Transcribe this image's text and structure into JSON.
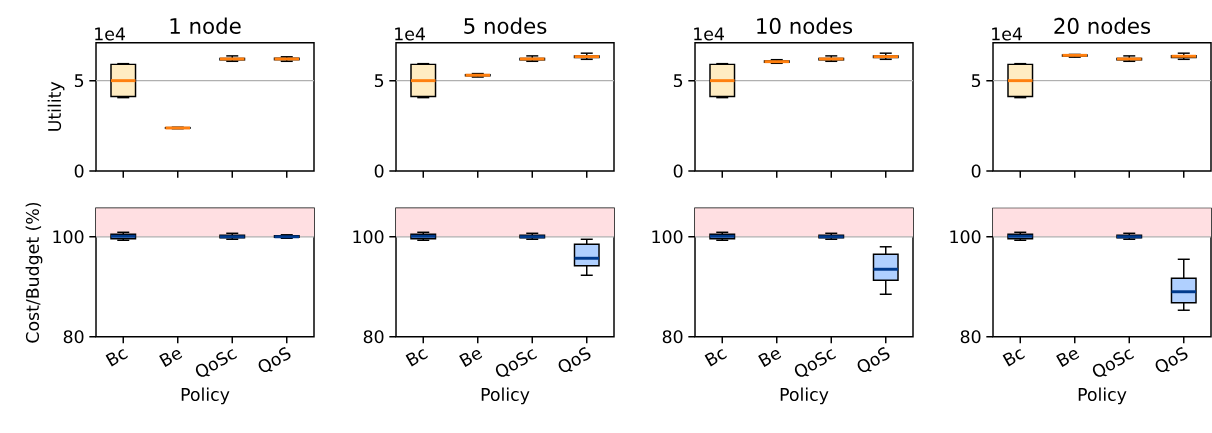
{
  "chart_data": [
    {
      "type": "box",
      "title": "1 node",
      "ylabel": "Utility",
      "categories": [
        null,
        null,
        null,
        null
      ],
      "tick_labels": "y",
      "ylim": [
        0,
        7.1
      ],
      "yticks": [
        0,
        5
      ],
      "annotations": [
        "1e4"
      ],
      "ref_lines": [
        {
          "axis": "y",
          "value": 5,
          "color": "#b0b0b0"
        }
      ],
      "series": [
        {
          "color": "#ffecc2",
          "boxes": [
            {
              "low": 4.06,
              "q1": 4.12,
              "median": 5.0,
              "q3": 5.9,
              "high": 5.94
            },
            {
              "low": 2.34,
              "q1": 2.37,
              "median": 2.38,
              "q3": 2.4,
              "high": 2.42
            },
            {
              "low": 6.07,
              "q1": 6.15,
              "median": 6.2,
              "q3": 6.23,
              "high": 6.37
            },
            {
              "low": 6.07,
              "q1": 6.16,
              "median": 6.2,
              "q3": 6.24,
              "high": 6.32
            }
          ]
        }
      ]
    },
    {
      "type": "box",
      "title": "5 nodes",
      "categories": [
        null,
        null,
        null,
        null
      ],
      "tick_labels": "y",
      "ylim": [
        0,
        7.1
      ],
      "yticks": [
        0,
        5
      ],
      "annotations": [
        "1e4"
      ],
      "ref_lines": [
        {
          "axis": "y",
          "value": 5,
          "color": "#b0b0b0"
        }
      ],
      "series": [
        {
          "color": "#ffecc2",
          "boxes": [
            {
              "low": 4.06,
              "q1": 4.12,
              "median": 5.0,
              "q3": 5.9,
              "high": 5.94
            },
            {
              "low": 5.2,
              "q1": 5.27,
              "median": 5.3,
              "q3": 5.33,
              "high": 5.39
            },
            {
              "low": 6.07,
              "q1": 6.15,
              "median": 6.2,
              "q3": 6.23,
              "high": 6.37
            },
            {
              "low": 6.18,
              "q1": 6.28,
              "median": 6.33,
              "q3": 6.37,
              "high": 6.52
            }
          ]
        }
      ]
    },
    {
      "type": "box",
      "title": "10 nodes",
      "categories": [
        null,
        null,
        null,
        null
      ],
      "tick_labels": "y",
      "ylim": [
        0,
        7.1
      ],
      "yticks": [
        0,
        5
      ],
      "annotations": [
        "1e4"
      ],
      "ref_lines": [
        {
          "axis": "y",
          "value": 5,
          "color": "#b0b0b0"
        }
      ],
      "series": [
        {
          "color": "#ffecc2",
          "boxes": [
            {
              "low": 4.06,
              "q1": 4.12,
              "median": 5.0,
              "q3": 5.9,
              "high": 5.94
            },
            {
              "low": 5.96,
              "q1": 6.02,
              "median": 6.05,
              "q3": 6.09,
              "high": 6.16
            },
            {
              "low": 6.07,
              "q1": 6.15,
              "median": 6.2,
              "q3": 6.23,
              "high": 6.37
            },
            {
              "low": 6.18,
              "q1": 6.28,
              "median": 6.33,
              "q3": 6.37,
              "high": 6.52
            }
          ]
        }
      ]
    },
    {
      "type": "box",
      "title": "20 nodes",
      "categories": [
        null,
        null,
        null,
        null
      ],
      "tick_labels": "y",
      "ylim": [
        0,
        7.1
      ],
      "yticks": [
        0,
        5
      ],
      "annotations": [
        "1e4"
      ],
      "ref_lines": [
        {
          "axis": "y",
          "value": 5,
          "color": "#b0b0b0"
        }
      ],
      "series": [
        {
          "color": "#ffecc2",
          "boxes": [
            {
              "low": 4.06,
              "q1": 4.12,
              "median": 5.0,
              "q3": 5.9,
              "high": 5.94
            },
            {
              "low": 6.3,
              "q1": 6.36,
              "median": 6.4,
              "q3": 6.42,
              "high": 6.45
            },
            {
              "low": 6.07,
              "q1": 6.15,
              "median": 6.2,
              "q3": 6.23,
              "high": 6.37
            },
            {
              "low": 6.18,
              "q1": 6.28,
              "median": 6.35,
              "q3": 6.38,
              "high": 6.52
            }
          ]
        }
      ]
    },
    {
      "type": "box",
      "xlabel": "Policy",
      "ylabel": "Cost/Budget (%)",
      "categories": [
        "Bc",
        "Be",
        "QoSc",
        "QoS"
      ],
      "ylim": [
        80,
        105.7
      ],
      "yticks": [
        80,
        100
      ],
      "ref_lines": [
        {
          "axis": "y",
          "value": 100,
          "color": "#b0b0b0"
        }
      ],
      "bands": [
        {
          "axis": "y",
          "from": 100,
          "to": 105.7,
          "color": "#ffdfe2"
        }
      ],
      "series": [
        {
          "color": "#b0d0ff",
          "boxes": [
            {
              "low": 99.3,
              "q1": 99.6,
              "median": 100.1,
              "q3": 100.5,
              "high": 100.9
            },
            null,
            {
              "low": 99.5,
              "q1": 99.8,
              "median": 100,
              "q3": 100.3,
              "high": 100.7
            },
            {
              "low": 99.7,
              "q1": 99.9,
              "median": 100,
              "q3": 100.2,
              "high": 100.4
            }
          ]
        }
      ]
    },
    {
      "type": "box",
      "xlabel": "Policy",
      "categories": [
        "Bc",
        "Be",
        "QoSc",
        "QoS"
      ],
      "ylim": [
        80,
        105.7
      ],
      "yticks": [
        80,
        100
      ],
      "ref_lines": [
        {
          "axis": "y",
          "value": 100,
          "color": "#b0b0b0"
        }
      ],
      "bands": [
        {
          "axis": "y",
          "from": 100,
          "to": 105.7,
          "color": "#ffdfe2"
        }
      ],
      "series": [
        {
          "color": "#b0d0ff",
          "boxes": [
            {
              "low": 99.3,
              "q1": 99.6,
              "median": 100.1,
              "q3": 100.5,
              "high": 100.9
            },
            null,
            {
              "low": 99.5,
              "q1": 99.8,
              "median": 100,
              "q3": 100.3,
              "high": 100.7
            },
            {
              "low": 92.3,
              "q1": 94.2,
              "median": 95.7,
              "q3": 98.5,
              "high": 99.5
            }
          ]
        }
      ]
    },
    {
      "type": "box",
      "xlabel": "Policy",
      "categories": [
        "Bc",
        "Be",
        "QoSc",
        "QoS"
      ],
      "ylim": [
        80,
        105.7
      ],
      "yticks": [
        80,
        100
      ],
      "ref_lines": [
        {
          "axis": "y",
          "value": 100,
          "color": "#b0b0b0"
        }
      ],
      "bands": [
        {
          "axis": "y",
          "from": 100,
          "to": 105.7,
          "color": "#ffdfe2"
        }
      ],
      "series": [
        {
          "color": "#b0d0ff",
          "boxes": [
            {
              "low": 99.3,
              "q1": 99.6,
              "median": 100.1,
              "q3": 100.5,
              "high": 100.9
            },
            null,
            {
              "low": 99.5,
              "q1": 99.8,
              "median": 100,
              "q3": 100.3,
              "high": 100.7
            },
            {
              "low": 88.5,
              "q1": 91.3,
              "median": 93.5,
              "q3": 96.5,
              "high": 98.0
            }
          ]
        }
      ]
    },
    {
      "type": "box",
      "xlabel": "Policy",
      "categories": [
        "Bc",
        "Be",
        "QoSc",
        "QoS"
      ],
      "ylim": [
        80,
        105.7
      ],
      "yticks": [
        80,
        100
      ],
      "ref_lines": [
        {
          "axis": "y",
          "value": 100,
          "color": "#b0b0b0"
        }
      ],
      "bands": [
        {
          "axis": "y",
          "from": 100,
          "to": 105.7,
          "color": "#ffdfe2"
        }
      ],
      "series": [
        {
          "color": "#b0d0ff",
          "boxes": [
            {
              "low": 99.3,
              "q1": 99.6,
              "median": 100.1,
              "q3": 100.5,
              "high": 100.9
            },
            null,
            {
              "low": 99.5,
              "q1": 99.8,
              "median": 100,
              "q3": 100.3,
              "high": 100.7
            },
            {
              "low": 85.3,
              "q1": 86.8,
              "median": 89.0,
              "q3": 91.7,
              "high": 95.5
            }
          ]
        }
      ]
    }
  ]
}
